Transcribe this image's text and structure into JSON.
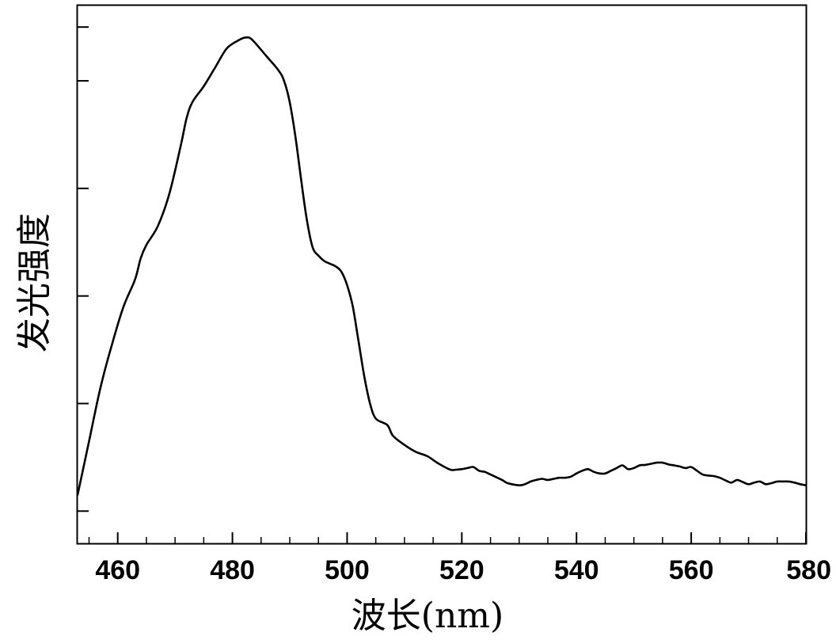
{
  "chart_data": {
    "type": "line",
    "xlabel": "波长(nm)",
    "ylabel": "发光强度",
    "xlim": [
      453,
      580
    ],
    "ylim": [
      0,
      1
    ],
    "x_ticks": [
      460,
      480,
      500,
      520,
      540,
      560,
      580
    ],
    "x_tick_labels": [
      "460",
      "480",
      "500",
      "520",
      "540",
      "560",
      "580"
    ],
    "y_ticks": [
      0.06,
      0.26,
      0.46,
      0.66,
      0.86,
      0.96
    ],
    "grid": false,
    "legend": "none",
    "line_color": "#000000",
    "series": [
      {
        "x": [
          453,
          455,
          457,
          459,
          461,
          463,
          464,
          465,
          467,
          469,
          471,
          472,
          473,
          475,
          477,
          479,
          481,
          482,
          483,
          484,
          486,
          488,
          489,
          490,
          491,
          492,
          493,
          494,
          495,
          496,
          497,
          498,
          499,
          500,
          501,
          502,
          503,
          504,
          505,
          507,
          508,
          510,
          512,
          514,
          516,
          518,
          519,
          520,
          521,
          522,
          523,
          524,
          525,
          527,
          528,
          530,
          531,
          532,
          533,
          534,
          535,
          536,
          537,
          538,
          539,
          540,
          541,
          542,
          543,
          544,
          545,
          546,
          547,
          548,
          549,
          550,
          551,
          552,
          553,
          554,
          555,
          556,
          557,
          558,
          559,
          560,
          561,
          562,
          563,
          564,
          565,
          566,
          567,
          568,
          569,
          570,
          571,
          572,
          573,
          574,
          575,
          576,
          577,
          578,
          579,
          580
        ],
        "y": [
          0.09,
          0.19,
          0.29,
          0.37,
          0.44,
          0.49,
          0.53,
          0.555,
          0.59,
          0.65,
          0.74,
          0.79,
          0.82,
          0.85,
          0.885,
          0.92,
          0.935,
          0.94,
          0.94,
          0.93,
          0.905,
          0.88,
          0.86,
          0.82,
          0.755,
          0.675,
          0.6,
          0.55,
          0.535,
          0.525,
          0.52,
          0.515,
          0.505,
          0.48,
          0.44,
          0.375,
          0.31,
          0.26,
          0.232,
          0.22,
          0.2,
          0.183,
          0.17,
          0.162,
          0.148,
          0.137,
          0.137,
          0.138,
          0.14,
          0.142,
          0.135,
          0.133,
          0.128,
          0.118,
          0.112,
          0.108,
          0.11,
          0.115,
          0.118,
          0.12,
          0.118,
          0.12,
          0.122,
          0.122,
          0.124,
          0.13,
          0.135,
          0.138,
          0.133,
          0.13,
          0.13,
          0.135,
          0.14,
          0.145,
          0.138,
          0.14,
          0.145,
          0.146,
          0.148,
          0.15,
          0.15,
          0.147,
          0.145,
          0.143,
          0.14,
          0.142,
          0.135,
          0.128,
          0.126,
          0.125,
          0.122,
          0.117,
          0.113,
          0.118,
          0.114,
          0.11,
          0.113,
          0.115,
          0.11,
          0.112,
          0.115,
          0.115,
          0.115,
          0.113,
          0.11,
          0.108
        ]
      }
    ]
  }
}
